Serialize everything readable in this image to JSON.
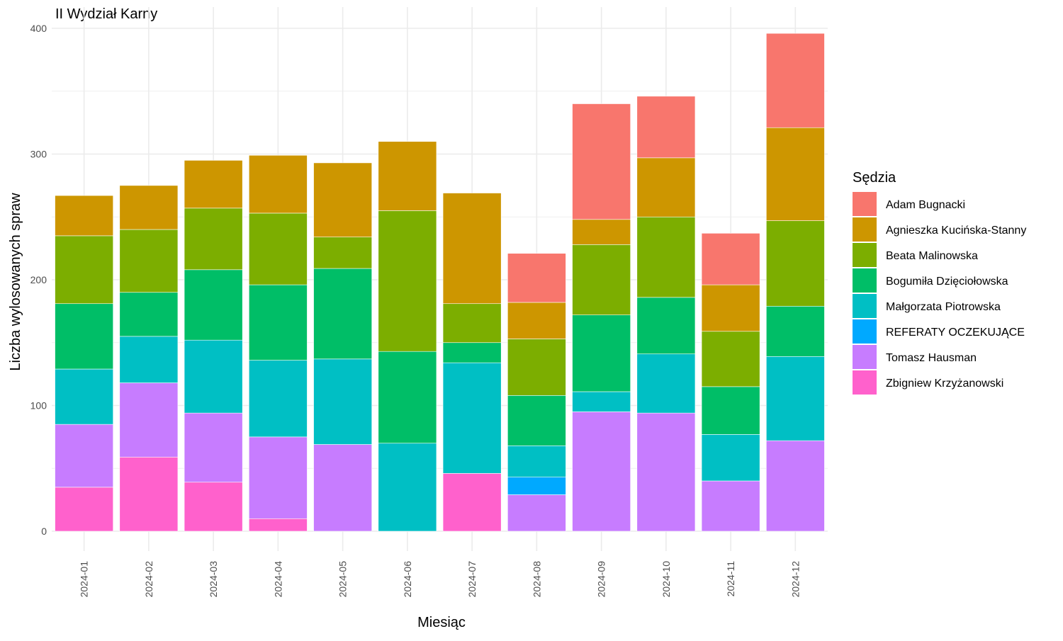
{
  "chart_data": {
    "type": "bar",
    "stacked": true,
    "title": "II Wydział Karny",
    "xlabel": "Miesiąc",
    "ylabel": "Liczba wylosowanych spraw",
    "ylim": [
      0,
      400
    ],
    "yticks": [
      0,
      100,
      200,
      300,
      400
    ],
    "grid": true,
    "legend_position": "right",
    "legend_title": "Sędzia",
    "categories": [
      "2024-01",
      "2024-02",
      "2024-03",
      "2024-04",
      "2024-05",
      "2024-06",
      "2024-07",
      "2024-08",
      "2024-09",
      "2024-10",
      "2024-11",
      "2024-12"
    ],
    "series": [
      {
        "name": "Zbigniew Krzyżanowski",
        "color": "#FF61CC",
        "values": [
          35,
          59,
          39,
          10,
          0,
          0,
          46,
          0,
          0,
          0,
          0,
          0
        ]
      },
      {
        "name": "Tomasz Hausman",
        "color": "#C77CFF",
        "values": [
          50,
          59,
          55,
          65,
          69,
          0,
          0,
          29,
          95,
          94,
          40,
          72
        ]
      },
      {
        "name": "REFERATY OCZEKUJĄCE",
        "color": "#00A9FF",
        "values": [
          0,
          0,
          0,
          0,
          0,
          0,
          0,
          14,
          0,
          0,
          0,
          0
        ]
      },
      {
        "name": "Małgorzata Piotrowska",
        "color": "#00BFC4",
        "values": [
          44,
          37,
          58,
          61,
          68,
          70,
          88,
          25,
          16,
          47,
          37,
          67
        ]
      },
      {
        "name": "Bogumiła Dzięciołowska",
        "color": "#00BE67",
        "values": [
          52,
          35,
          56,
          60,
          72,
          73,
          16,
          40,
          61,
          45,
          38,
          40
        ]
      },
      {
        "name": "Beata Malinowska",
        "color": "#7CAE00",
        "values": [
          54,
          50,
          49,
          57,
          25,
          112,
          31,
          45,
          56,
          64,
          44,
          68
        ]
      },
      {
        "name": "Agnieszka Kucińska-Stanny",
        "color": "#CD9600",
        "values": [
          32,
          35,
          38,
          46,
          59,
          55,
          88,
          29,
          20,
          47,
          37,
          74
        ]
      },
      {
        "name": "Adam Bugnacki",
        "color": "#F8766D",
        "values": [
          0,
          0,
          0,
          0,
          0,
          0,
          0,
          39,
          92,
          49,
          41,
          75
        ]
      }
    ],
    "legend_order": [
      "Adam Bugnacki",
      "Agnieszka Kucińska-Stanny",
      "Beata Malinowska",
      "Bogumiła Dzięciołowska",
      "Małgorzata Piotrowska",
      "REFERATY OCZEKUJĄCE",
      "Tomasz Hausman",
      "Zbigniew Krzyżanowski"
    ]
  }
}
